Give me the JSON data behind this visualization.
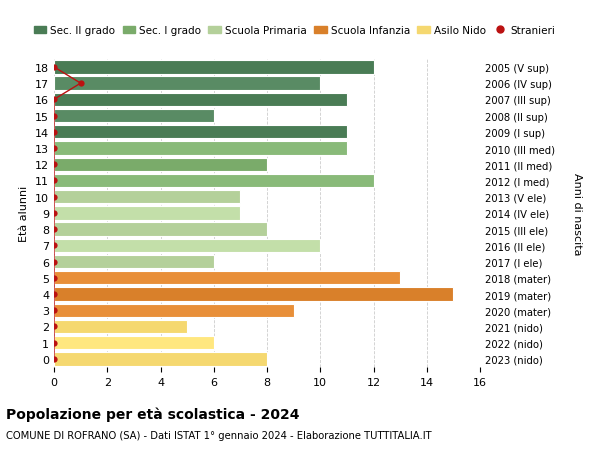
{
  "ages": [
    18,
    17,
    16,
    15,
    14,
    13,
    12,
    11,
    10,
    9,
    8,
    7,
    6,
    5,
    4,
    3,
    2,
    1,
    0
  ],
  "right_labels": [
    "2005 (V sup)",
    "2006 (IV sup)",
    "2007 (III sup)",
    "2008 (II sup)",
    "2009 (I sup)",
    "2010 (III med)",
    "2011 (II med)",
    "2012 (I med)",
    "2013 (V ele)",
    "2014 (IV ele)",
    "2015 (III ele)",
    "2016 (II ele)",
    "2017 (I ele)",
    "2018 (mater)",
    "2019 (mater)",
    "2020 (mater)",
    "2021 (nido)",
    "2022 (nido)",
    "2023 (nido)"
  ],
  "bar_values": [
    12,
    10,
    11,
    6,
    11,
    11,
    8,
    12,
    7,
    7,
    8,
    10,
    6,
    13,
    15,
    9,
    5,
    6,
    8
  ],
  "bar_colors_even": [
    "#4a7c55",
    "#4a7c55",
    "#4a7c55",
    "#4a7c55",
    "#4a7c55",
    "#7aab6a",
    "#7aab6a",
    "#7aab6a",
    "#b4d09a",
    "#b4d09a",
    "#b4d09a",
    "#b4d09a",
    "#b4d09a",
    "#d9802a",
    "#d9802a",
    "#d9802a",
    "#f5d870",
    "#f5d870",
    "#f5d870"
  ],
  "bar_colors_odd": [
    "#527f5c",
    "#527f5c",
    "#527f5c",
    "#527f5c",
    "#527f5c",
    "#82b372",
    "#82b372",
    "#82b372",
    "#bcd8a6",
    "#bcd8a6",
    "#bcd8a6",
    "#bcd8a6",
    "#bcd8a6",
    "#e08832",
    "#e08832",
    "#e08832",
    "#f7e080",
    "#f7e080",
    "#f7e080"
  ],
  "bar_base_colors": [
    "#4a7c55",
    "#4a7c55",
    "#4a7c55",
    "#4a7c55",
    "#4a7c55",
    "#7aab6a",
    "#7aab6a",
    "#7aab6a",
    "#b4d09a",
    "#b4d09a",
    "#b4d09a",
    "#b4d09a",
    "#b4d09a",
    "#d9802a",
    "#d9802a",
    "#d9802a",
    "#f5d870",
    "#f5d870",
    "#f5d870"
  ],
  "stranieri_values": [
    0,
    1,
    0,
    0,
    0,
    0,
    0,
    0,
    0,
    0,
    0,
    0,
    0,
    0,
    0,
    0,
    0,
    0,
    0
  ],
  "stranieri_color": "#bb1111",
  "stranieri_line_color": "#bb1111",
  "xlim": [
    0,
    16
  ],
  "xticks": [
    0,
    2,
    4,
    6,
    8,
    10,
    12,
    14,
    16
  ],
  "ylim": [
    -0.5,
    18.5
  ],
  "title": "Popolazione per età scolastica - 2024",
  "subtitle": "COMUNE DI ROFRANO (SA) - Dati ISTAT 1° gennaio 2024 - Elaborazione TUTTITALIA.IT",
  "ylabel": "Età alunni",
  "ylabel_right": "Anni di nascita",
  "legend_labels": [
    "Sec. II grado",
    "Sec. I grado",
    "Scuola Primaria",
    "Scuola Infanzia",
    "Asilo Nido",
    "Stranieri"
  ],
  "legend_colors": [
    "#4a7c55",
    "#7aab6a",
    "#b4d09a",
    "#d9802a",
    "#f5d870",
    "#bb1111"
  ],
  "background_color": "#ffffff",
  "grid_color": "#cccccc"
}
